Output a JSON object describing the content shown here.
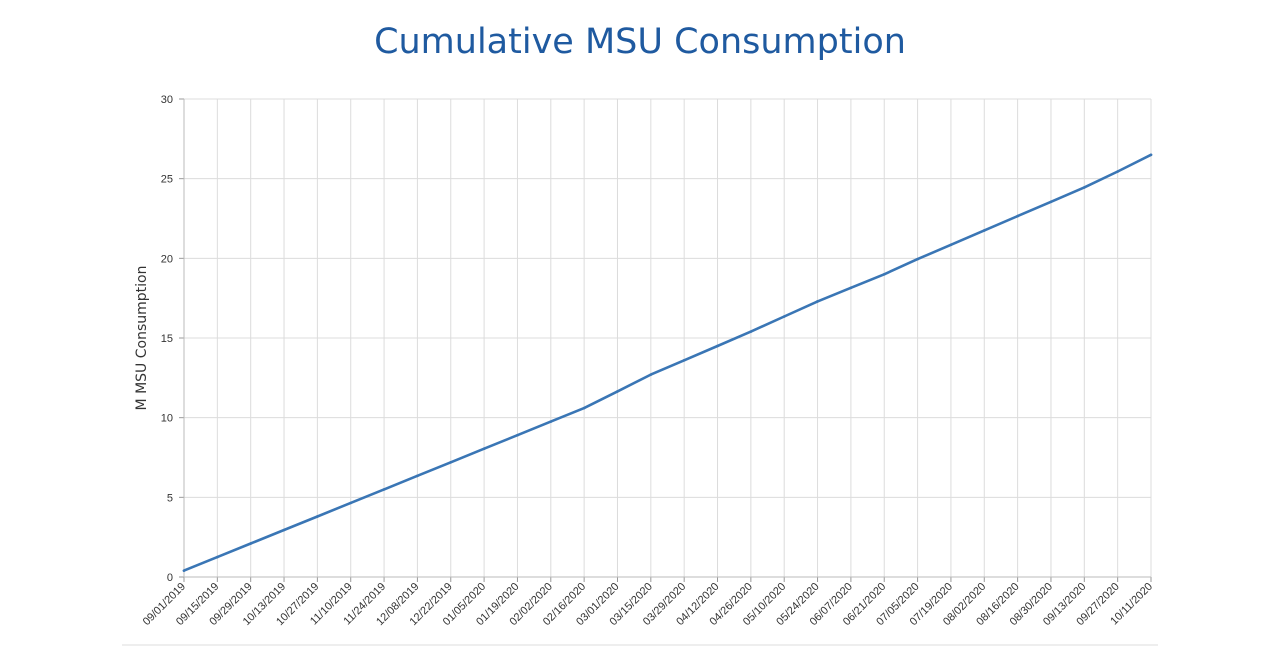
{
  "chart_data": {
    "type": "line",
    "title": "Cumulative MSU Consumption",
    "xlabel": "",
    "ylabel": "M MSU Consumption",
    "ylim": [
      0,
      30
    ],
    "yticks": [
      0,
      5,
      10,
      15,
      20,
      25,
      30
    ],
    "grid": true,
    "legend": "none",
    "categories": [
      "09/01/2019",
      "09/15/2019",
      "09/29/2019",
      "10/13/2019",
      "10/27/2019",
      "11/10/2019",
      "11/24/2019",
      "12/08/2019",
      "12/22/2019",
      "01/05/2020",
      "01/19/2020",
      "02/02/2020",
      "02/16/2020",
      "03/01/2020",
      "03/15/2020",
      "03/29/2020",
      "04/12/2020",
      "04/26/2020",
      "05/10/2020",
      "05/24/2020",
      "06/07/2020",
      "06/21/2020",
      "07/05/2020",
      "07/19/2020",
      "08/02/2020",
      "08/16/2020",
      "08/30/2020",
      "09/13/2020",
      "09/27/2020",
      "10/11/2020"
    ],
    "series": [
      {
        "name": "",
        "color": "#3a76b5",
        "values": [
          0.4,
          1.25,
          2.1,
          2.95,
          3.8,
          4.65,
          5.5,
          6.35,
          7.2,
          8.05,
          8.9,
          9.75,
          10.6,
          11.65,
          12.7,
          13.6,
          14.5,
          15.4,
          16.35,
          17.3,
          18.15,
          19.0,
          19.95,
          20.85,
          21.75,
          22.65,
          23.55,
          24.45,
          25.45,
          26.5
        ]
      }
    ]
  }
}
